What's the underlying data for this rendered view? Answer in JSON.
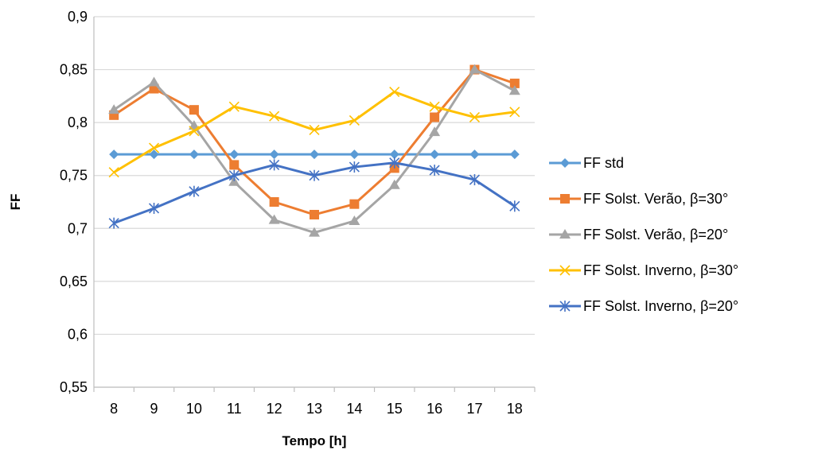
{
  "chart_data": {
    "type": "line",
    "title": "",
    "xlabel": "Tempo [h]",
    "ylabel": "FF",
    "x": [
      8,
      9,
      10,
      11,
      12,
      13,
      14,
      15,
      16,
      17,
      18
    ],
    "x_tick_labels": [
      "8",
      "9",
      "10",
      "11",
      "12",
      "13",
      "14",
      "15",
      "16",
      "17",
      "18"
    ],
    "ylim": [
      0.55,
      0.9
    ],
    "y_tick_values": [
      0.55,
      0.6,
      0.65,
      0.7,
      0.75,
      0.8,
      0.85,
      0.9
    ],
    "y_tick_labels": [
      "0,55",
      "0,6",
      "0,65",
      "0,7",
      "0,75",
      "0,8",
      "0,85",
      "0,9"
    ],
    "grid": true,
    "legend_position": "right",
    "series": [
      {
        "name": "FF std",
        "color": "#5B9BD5",
        "marker": "diamond",
        "values": [
          0.77,
          0.77,
          0.77,
          0.77,
          0.77,
          0.77,
          0.77,
          0.77,
          0.77,
          0.77,
          0.77
        ]
      },
      {
        "name": "FF Solst. Verão, β=30°",
        "color": "#ED7D31",
        "marker": "square",
        "values": [
          0.807,
          0.832,
          0.812,
          0.76,
          0.725,
          0.713,
          0.723,
          0.757,
          0.805,
          0.85,
          0.837
        ]
      },
      {
        "name": "FF Solst. Verão, β=20°",
        "color": "#A5A5A5",
        "marker": "triangle",
        "values": [
          0.812,
          0.838,
          0.797,
          0.744,
          0.708,
          0.696,
          0.707,
          0.741,
          0.791,
          0.85,
          0.83
        ]
      },
      {
        "name": "FF Solst. Inverno, β=30°",
        "color": "#FFC000",
        "marker": "x",
        "values": [
          0.753,
          0.776,
          0.792,
          0.815,
          0.806,
          0.793,
          0.802,
          0.829,
          0.815,
          0.805,
          0.81
        ]
      },
      {
        "name": "FF Solst. Inverno, β=20°",
        "color": "#4472C4",
        "marker": "star",
        "values": [
          0.705,
          0.719,
          0.735,
          0.75,
          0.76,
          0.75,
          0.758,
          0.762,
          0.755,
          0.746,
          0.721
        ]
      }
    ]
  }
}
